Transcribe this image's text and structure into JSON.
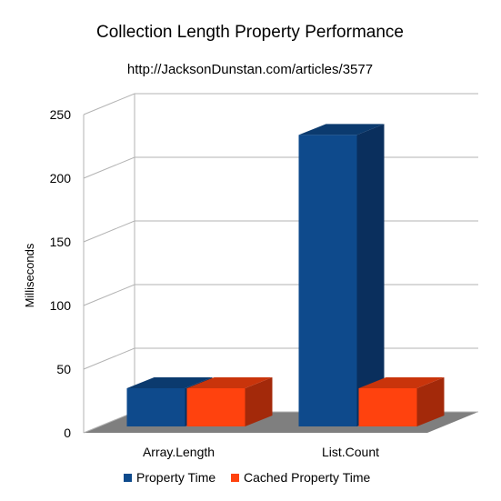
{
  "chart_data": {
    "type": "bar",
    "title": "Collection Length Property Performance",
    "subtitle": "http://JacksonDunstan.com/articles/3577",
    "xlabel": "",
    "ylabel": "Milliseconds",
    "categories": [
      "Array.Length",
      "List.Count"
    ],
    "series": [
      {
        "name": "Property Time",
        "values": [
          30,
          229
        ]
      },
      {
        "name": "Cached Property Time",
        "values": [
          30,
          30
        ]
      }
    ],
    "ylim": [
      0,
      250
    ],
    "yticks": [
      0,
      50,
      100,
      150,
      200,
      250
    ],
    "grid": true,
    "legend": "bottom",
    "style": "3d",
    "colors": {
      "series": [
        "#0e4a8c",
        "#ff420e"
      ],
      "series_side": [
        "#0a2f5d",
        "#a3290a"
      ],
      "series_top": [
        "#0b3a6e",
        "#c9340b"
      ],
      "grid": "#b3b3b3",
      "floor": "#7f7f7f",
      "wall": "#ffffff"
    }
  }
}
